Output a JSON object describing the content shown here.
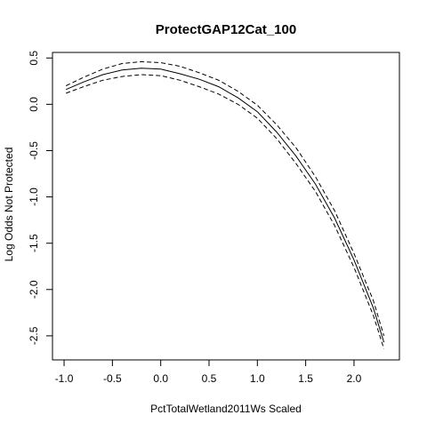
{
  "chart_data": {
    "type": "line",
    "title": "ProtectGAP12Cat_100",
    "xlabel": "PctTotalWetland2011Ws Scaled",
    "ylabel": "Log Odds Not Protected",
    "xlim": [
      -1.12,
      2.47
    ],
    "ylim": [
      -2.76,
      0.56
    ],
    "x_ticks": [
      -1.0,
      -0.5,
      0.0,
      0.5,
      1.0,
      1.5,
      2.0
    ],
    "x_tick_labels": [
      "-1.0",
      "-0.5",
      "0.0",
      "0.5",
      "1.0",
      "1.5",
      "2.0"
    ],
    "y_ticks": [
      0.5,
      0.0,
      -0.5,
      -1.0,
      -1.5,
      -2.0,
      -2.5
    ],
    "y_tick_labels": [
      "0.5",
      "0.0",
      "-0.5",
      "-1.0",
      "-1.5",
      "-2.0",
      "-2.5"
    ],
    "grid": false,
    "legend": "none",
    "line_color": "#000000",
    "series": [
      {
        "style": "solid",
        "x": [
          -0.98,
          -0.8,
          -0.6,
          -0.4,
          -0.2,
          0.0,
          0.2,
          0.4,
          0.6,
          0.8,
          1.0,
          1.2,
          1.4,
          1.6,
          1.8,
          2.0,
          2.2,
          2.31
        ],
        "y": [
          0.16,
          0.24,
          0.32,
          0.37,
          0.39,
          0.38,
          0.33,
          0.27,
          0.19,
          0.07,
          -0.08,
          -0.3,
          -0.56,
          -0.86,
          -1.23,
          -1.68,
          -2.2,
          -2.57
        ]
      },
      {
        "style": "dashed",
        "x": [
          -0.98,
          -0.8,
          -0.6,
          -0.4,
          -0.2,
          0.0,
          0.2,
          0.4,
          0.6,
          0.8,
          1.0,
          1.2,
          1.4,
          1.6,
          1.8,
          2.0,
          2.2,
          2.31
        ],
        "y": [
          0.2,
          0.29,
          0.38,
          0.44,
          0.46,
          0.45,
          0.41,
          0.34,
          0.26,
          0.14,
          -0.01,
          -0.22,
          -0.47,
          -0.78,
          -1.15,
          -1.61,
          -2.12,
          -2.5
        ]
      },
      {
        "style": "dashed",
        "x": [
          -0.98,
          -0.8,
          -0.6,
          -0.4,
          -0.2,
          0.0,
          0.2,
          0.4,
          0.6,
          0.8,
          1.0,
          1.2,
          1.4,
          1.6,
          1.8,
          2.0,
          2.2,
          2.31
        ],
        "y": [
          0.12,
          0.19,
          0.26,
          0.3,
          0.32,
          0.31,
          0.26,
          0.19,
          0.11,
          0.0,
          -0.15,
          -0.37,
          -0.64,
          -0.94,
          -1.31,
          -1.76,
          -2.28,
          -2.64
        ]
      }
    ]
  }
}
